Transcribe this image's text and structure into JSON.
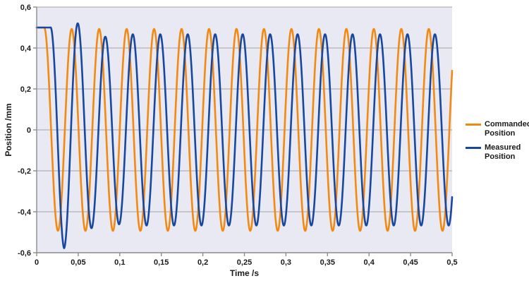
{
  "chart_data": {
    "type": "line",
    "title": "",
    "xlabel": "Time /s",
    "ylabel": "Position /mm",
    "xlim": [
      0,
      0.5
    ],
    "ylim": [
      -0.6,
      0.6
    ],
    "grid": "horizontal-only",
    "legend_position": "right-middle",
    "x_ticks": [
      {
        "v": 0,
        "label": "0"
      },
      {
        "v": 0.05,
        "label": "0,05"
      },
      {
        "v": 0.1,
        "label": "0,1"
      },
      {
        "v": 0.15,
        "label": "0,15"
      },
      {
        "v": 0.2,
        "label": "0,2"
      },
      {
        "v": 0.25,
        "label": "0,25"
      },
      {
        "v": 0.3,
        "label": "0,3"
      },
      {
        "v": 0.35,
        "label": "0,35"
      },
      {
        "v": 0.4,
        "label": "0,4"
      },
      {
        "v": 0.45,
        "label": "0,45"
      },
      {
        "v": 0.5,
        "label": "0,5"
      }
    ],
    "y_ticks": [
      {
        "v": 0.6,
        "label": "0,6"
      },
      {
        "v": 0.4,
        "label": "0,4"
      },
      {
        "v": 0.2,
        "label": "0,2"
      },
      {
        "v": 0,
        "label": "0"
      },
      {
        "v": -0.2,
        "label": "-0,2"
      },
      {
        "v": -0.4,
        "label": "-0,4"
      },
      {
        "v": -0.6,
        "label": "-0,6"
      }
    ],
    "series": [
      {
        "name": "Commanded Position",
        "legend_lines": [
          "Commanded",
          "Position"
        ],
        "color": "#f28a11",
        "line_width": 2.6,
        "waveform": {
          "kind": "hold-then-cosine",
          "initial_value_mm": 0.5,
          "hold_until_s": 0.0091,
          "frequency_hz": 30.25,
          "amplitude_envelope": [
            [
              0,
              0.5
            ],
            [
              0.0165,
              0.493
            ]
          ]
        }
      },
      {
        "name": "Measured Position",
        "legend_lines": [
          "Measured",
          "Position"
        ],
        "color": "#17479e",
        "line_width": 2.6,
        "waveform": {
          "kind": "hold-then-cosine",
          "initial_value_mm": 0.5,
          "hold_until_s": 0.0165,
          "frequency_hz": 30.25,
          "amplitude_envelope": [
            [
              0,
              0.5
            ],
            [
              0.0165,
              0.578
            ],
            [
              0.0331,
              0.52
            ],
            [
              0.0496,
              0.48
            ],
            [
              0.0661,
              0.455
            ],
            [
              0.0992,
              0.467
            ]
          ]
        }
      }
    ]
  },
  "colors": {
    "plot_background": "#e8e9f3",
    "gridline": "#a3a3a3",
    "axis_line": "#8c8c8c",
    "tick_label": "#1a1a1a",
    "page_background": "#ffffff"
  }
}
